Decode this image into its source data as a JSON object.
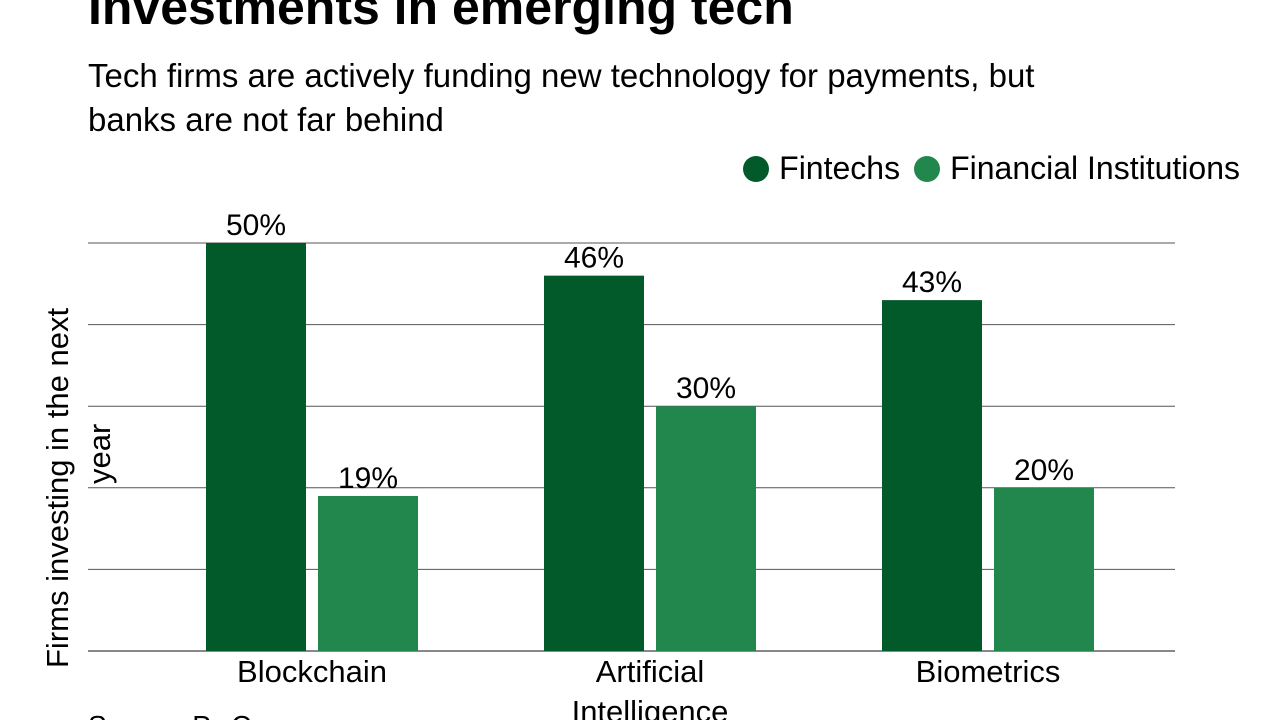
{
  "chart_data": {
    "type": "bar",
    "title": "Investments in emerging tech",
    "subtitle": "Tech firms are actively funding new technology for payments, but banks are not far behind",
    "ylabel": "Firms investing in the next year",
    "xlabel": "",
    "categories": [
      "Blockchain",
      "Artificial Intelligence",
      "Biometrics"
    ],
    "series": [
      {
        "name": "Fintechs",
        "values": [
          50,
          46,
          43
        ],
        "labels": [
          "50%",
          "46%",
          "43%"
        ],
        "color": "#02592a"
      },
      {
        "name": "Financial Institutions",
        "values": [
          19,
          30,
          20
        ],
        "labels": [
          "19%",
          "30%",
          "20%"
        ],
        "color": "#22874d"
      }
    ],
    "ylim": [
      0,
      50
    ],
    "gridlines": [
      0,
      10,
      20,
      30,
      40,
      50
    ],
    "grid": true,
    "legend": "top-right",
    "source": "Source: PwC"
  }
}
